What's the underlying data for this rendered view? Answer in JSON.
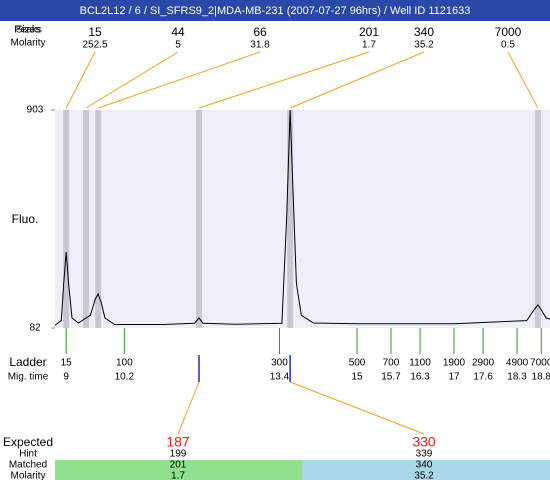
{
  "title": "BCL2L12 / 6 / SI_SFRS9_2|MDA-MB-231 (2007-07-27 96hrs) / Well ID 1121633",
  "peak_table": {
    "peaks_label": "Peaks",
    "sizes_label": "Sizes",
    "molarity_label": "Molarity",
    "columns": [
      {
        "size": 15,
        "molarity": 252.5,
        "time": 9.0
      },
      {
        "size": 44,
        "molarity": 5,
        "time": 9.41
      },
      {
        "size": 66,
        "molarity": 31.8,
        "time": 9.66
      },
      {
        "size": 201,
        "molarity": 1.7,
        "time": 11.74
      },
      {
        "size": 340,
        "molarity": 35.2,
        "time": 13.62
      },
      {
        "size": 7000,
        "molarity": 0.5,
        "time": 18.73
      }
    ]
  },
  "chart_data": {
    "type": "line",
    "y_label": "Fluo.",
    "color": "#000000",
    "xlim": [
      8.77,
      18.98
    ],
    "ylim": [
      82,
      903
    ],
    "yticks": [
      82,
      903
    ],
    "x": [
      8.77,
      8.9,
      8.95,
      9.0,
      9.05,
      9.12,
      9.25,
      9.5,
      9.6,
      9.66,
      9.72,
      9.8,
      10.0,
      11.0,
      11.65,
      11.74,
      11.82,
      12.5,
      13.45,
      13.55,
      13.62,
      13.68,
      13.75,
      13.85,
      14.1,
      15.0,
      17.0,
      18.5,
      18.65,
      18.73,
      18.8,
      18.9,
      18.98
    ],
    "values": [
      93,
      110,
      250,
      368,
      250,
      120,
      101,
      130,
      190,
      210,
      180,
      120,
      95,
      95,
      100,
      120,
      100,
      96,
      100,
      500,
      903,
      600,
      250,
      130,
      101,
      98,
      98,
      110,
      150,
      169,
      150,
      120,
      115
    ]
  },
  "ladder": {
    "label": "Ladder",
    "time_label": "Mig. time",
    "sizes": [
      15,
      100,
      300,
      500,
      700,
      1100,
      1900,
      2900,
      4900,
      7000
    ],
    "times": [
      9,
      10.2,
      13.4,
      15,
      15.7,
      16.3,
      17,
      17.6,
      18.3,
      18.8
    ]
  },
  "expected": {
    "label": "Expected",
    "hint_label": "Hint",
    "matched_label": "Matched",
    "molarity_label": "Molarity",
    "items": [
      {
        "expected": 187,
        "hint": 199,
        "matched": 201,
        "molarity": 1.7,
        "time": 11.74
      },
      {
        "expected": 330,
        "hint": 339,
        "matched": 340,
        "molarity": 35.2,
        "time": 13.62
      }
    ]
  }
}
